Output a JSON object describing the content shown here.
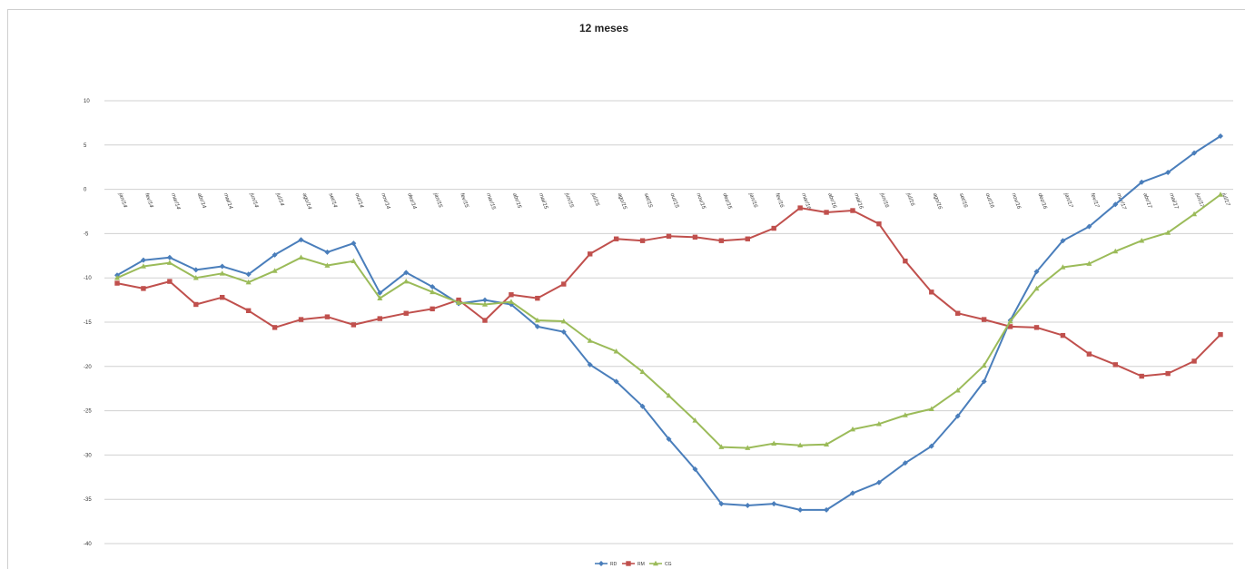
{
  "chart_data": {
    "type": "line",
    "title": "12 meses",
    "xlabel": "",
    "ylabel": "",
    "ylim": [
      -40,
      10
    ],
    "yticks": [
      10,
      5,
      0,
      -5,
      -10,
      -15,
      -20,
      -25,
      -30,
      -35,
      -40
    ],
    "grid": "horizontal",
    "legend_position": "bottom",
    "categories": [
      "jan/14",
      "fev/14",
      "mar/14",
      "abr/14",
      "mai/14",
      "jun/14",
      "jul/14",
      "ago/14",
      "set/14",
      "out/14",
      "nov/14",
      "dez/14",
      "jan/15",
      "fev/15",
      "mar/15",
      "abr/15",
      "mai/15",
      "jun/15",
      "jul/15",
      "ago/15",
      "set/15",
      "out/15",
      "nov/15",
      "dez/15",
      "jan/16",
      "fev/16",
      "mar/16",
      "abr/16",
      "mai/16",
      "jun/16",
      "jul/16",
      "ago/16",
      "set/16",
      "out/16",
      "nov/16",
      "dez/16",
      "jan/17",
      "fev/17",
      "mar/17",
      "abr/17",
      "mai/17",
      "jun/17",
      "jul/17"
    ],
    "series": [
      {
        "name": "RD",
        "color": "#4a7ebb",
        "marker": "diamond",
        "values": [
          -9.7,
          -8.0,
          -7.7,
          -9.1,
          -8.7,
          -9.6,
          -7.4,
          -5.7,
          -7.1,
          -6.1,
          -11.7,
          -9.4,
          -11.0,
          -12.9,
          -12.5,
          -13.0,
          -15.5,
          -16.1,
          -19.8,
          -21.7,
          -24.5,
          -28.2,
          -31.6,
          -35.5,
          -35.7,
          -35.5,
          -36.2,
          -36.2,
          -34.3,
          -33.1,
          -30.9,
          -29.0,
          -25.6,
          -21.7,
          -14.8,
          -9.3,
          -5.8,
          -4.2,
          -1.7,
          0.8,
          1.9,
          4.1,
          6.0
        ]
      },
      {
        "name": "RM",
        "color": "#c0504d",
        "marker": "square",
        "values": [
          -10.6,
          -11.2,
          -10.4,
          -13.0,
          -12.2,
          -13.7,
          -15.6,
          -14.7,
          -14.4,
          -15.3,
          -14.6,
          -14.0,
          -13.5,
          -12.5,
          -14.8,
          -11.9,
          -12.3,
          -10.7,
          -7.3,
          -5.6,
          -5.8,
          -5.3,
          -5.4,
          -5.8,
          -5.6,
          -4.4,
          -2.1,
          -2.6,
          -2.4,
          -3.9,
          -8.1,
          -11.6,
          -14.0,
          -14.7,
          -15.5,
          -15.6,
          -16.5,
          -18.6,
          -19.8,
          -21.1,
          -20.8,
          -19.4,
          -16.4
        ]
      },
      {
        "name": "CG",
        "color": "#9bbb59",
        "marker": "triangle",
        "values": [
          -10.0,
          -8.7,
          -8.3,
          -10.0,
          -9.5,
          -10.5,
          -9.2,
          -7.7,
          -8.6,
          -8.1,
          -12.3,
          -10.4,
          -11.6,
          -12.8,
          -13.0,
          -12.7,
          -14.8,
          -14.9,
          -17.1,
          -18.3,
          -20.6,
          -23.3,
          -26.1,
          -29.1,
          -29.2,
          -28.7,
          -28.9,
          -28.8,
          -27.1,
          -26.5,
          -25.5,
          -24.8,
          -22.7,
          -19.9,
          -14.9,
          -11.2,
          -8.8,
          -8.4,
          -7.0,
          -5.8,
          -4.9,
          -2.8,
          -0.6
        ]
      }
    ]
  }
}
